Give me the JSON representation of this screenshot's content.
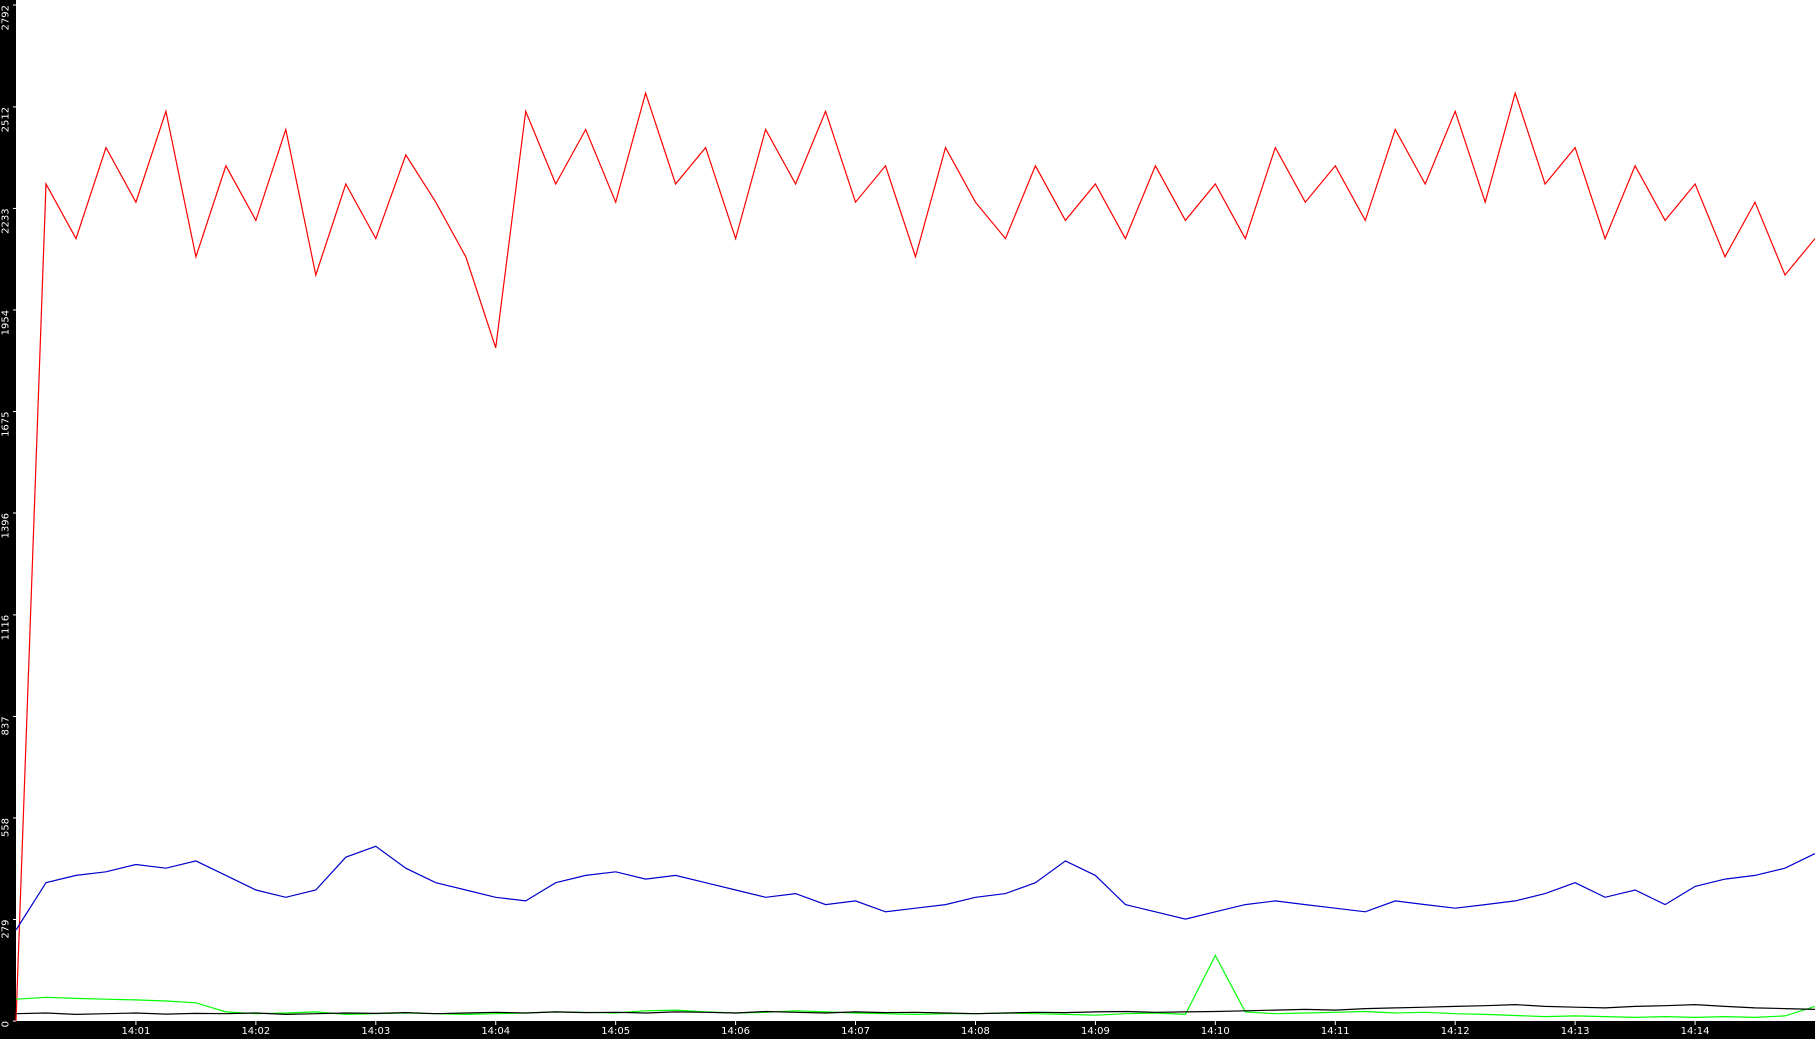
{
  "chart_data": {
    "type": "line",
    "x": [
      840,
      840.25,
      840.5,
      840.75,
      841,
      841.25,
      841.5,
      841.75,
      842,
      842.25,
      842.5,
      842.75,
      843,
      843.25,
      843.5,
      843.75,
      844,
      844.25,
      844.5,
      844.75,
      845,
      845.25,
      845.5,
      845.75,
      846,
      846.25,
      846.5,
      846.75,
      847,
      847.25,
      847.5,
      847.75,
      848,
      848.25,
      848.5,
      848.75,
      849,
      849.25,
      849.5,
      849.75,
      850,
      850.25,
      850.5,
      850.75,
      851,
      851.25,
      851.5,
      851.75,
      852,
      852.25,
      852.5,
      852.75,
      853,
      853.25,
      853.5,
      853.75,
      854,
      854.25,
      854.5,
      854.75,
      855
    ],
    "series": [
      {
        "color": "#ff0000",
        "values": [
          0,
          2300,
          2150,
          2400,
          2250,
          2500,
          2100,
          2350,
          2200,
          2450,
          2050,
          2300,
          2150,
          2380,
          2250,
          2100,
          1850,
          2500,
          2300,
          2450,
          2250,
          2550,
          2300,
          2400,
          2150,
          2450,
          2300,
          2500,
          2250,
          2350,
          2100,
          2400,
          2250,
          2150,
          2350,
          2200,
          2300,
          2150,
          2350,
          2200,
          2300,
          2150,
          2400,
          2250,
          2350,
          2200,
          2450,
          2300,
          2500,
          2250,
          2550,
          2300,
          2400,
          2150,
          2350,
          2200,
          2300,
          2100,
          2250,
          2050,
          2150
        ]
      },
      {
        "color": "#0000cc",
        "values": [
          250,
          380,
          400,
          410,
          430,
          420,
          440,
          400,
          360,
          340,
          360,
          450,
          480,
          420,
          380,
          360,
          340,
          330,
          380,
          400,
          410,
          390,
          400,
          380,
          360,
          340,
          350,
          320,
          330,
          300,
          310,
          320,
          340,
          350,
          380,
          440,
          400,
          320,
          300,
          280,
          300,
          320,
          330,
          320,
          310,
          300,
          330,
          320,
          310,
          320,
          330,
          350,
          380,
          340,
          360,
          320,
          370,
          390,
          400,
          420,
          460
        ]
      },
      {
        "color": "#00ff00",
        "values": [
          60,
          65,
          62,
          60,
          58,
          55,
          50,
          25,
          20,
          22,
          25,
          18,
          20,
          22,
          20,
          18,
          20,
          22,
          25,
          24,
          22,
          28,
          30,
          25,
          22,
          24,
          28,
          25,
          22,
          20,
          18,
          20,
          20,
          22,
          20,
          18,
          16,
          20,
          22,
          18,
          180,
          25,
          20,
          22,
          24,
          26,
          22,
          24,
          20,
          18,
          15,
          12,
          14,
          12,
          10,
          12,
          10,
          12,
          10,
          14,
          40
        ]
      },
      {
        "color": "#000000",
        "values": [
          20,
          22,
          18,
          20,
          22,
          19,
          21,
          20,
          22,
          18,
          20,
          22,
          21,
          23,
          20,
          22,
          24,
          22,
          25,
          23,
          24,
          22,
          25,
          24,
          22,
          26,
          24,
          22,
          25,
          23,
          24,
          22,
          20,
          22,
          24,
          23,
          25,
          26,
          24,
          25,
          26,
          28,
          30,
          32,
          30,
          34,
          36,
          38,
          40,
          42,
          45,
          40,
          38,
          36,
          40,
          42,
          45,
          40,
          36,
          34,
          32
        ]
      }
    ],
    "xlim": [
      840,
      855
    ],
    "xticks": [
      {
        "value": 841,
        "label": "14:01"
      },
      {
        "value": 842,
        "label": "14:02"
      },
      {
        "value": 843,
        "label": "14:03"
      },
      {
        "value": 844,
        "label": "14:04"
      },
      {
        "value": 845,
        "label": "14:05"
      },
      {
        "value": 846,
        "label": "14:06"
      },
      {
        "value": 847,
        "label": "14:07"
      },
      {
        "value": 848,
        "label": "14:08"
      },
      {
        "value": 849,
        "label": "14:09"
      },
      {
        "value": 850,
        "label": "14:10"
      },
      {
        "value": 851,
        "label": "14:11"
      },
      {
        "value": 852,
        "label": "14:12"
      },
      {
        "value": 853,
        "label": "14:13"
      },
      {
        "value": 854,
        "label": "14:14"
      }
    ],
    "ylim": [
      0,
      2792
    ],
    "yticks": [
      0,
      279,
      558,
      837,
      1116,
      1396,
      1675,
      1954,
      2233,
      2512,
      2792
    ],
    "grid": false
  }
}
